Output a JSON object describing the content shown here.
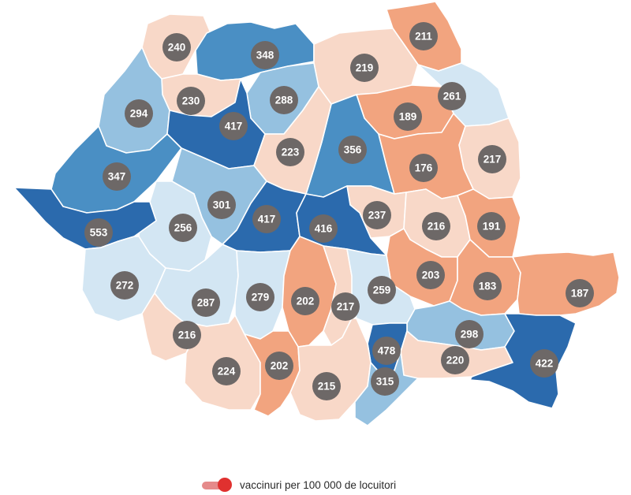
{
  "palette": {
    "dark_blue": "#2b6aad",
    "mid_blue": "#4a8fc4",
    "light_blue": "#95c1e0",
    "pale_blue": "#d3e6f3",
    "pale_peach": "#f8d8c8",
    "peach": "#f2a47f",
    "marker": "#6d6867",
    "border": "#ffffff"
  },
  "counties": [
    {
      "value": 240,
      "color": "pale_peach"
    },
    {
      "value": 348,
      "color": "mid_blue"
    },
    {
      "value": 211,
      "color": "peach"
    },
    {
      "value": 219,
      "color": "pale_peach"
    },
    {
      "value": 230,
      "color": "pale_peach"
    },
    {
      "value": 288,
      "color": "light_blue"
    },
    {
      "value": 261,
      "color": "pale_blue"
    },
    {
      "value": 294,
      "color": "light_blue"
    },
    {
      "value": 417,
      "color": "dark_blue"
    },
    {
      "value": 189,
      "color": "peach"
    },
    {
      "value": 356,
      "color": "mid_blue"
    },
    {
      "value": 223,
      "color": "pale_peach"
    },
    {
      "value": 217,
      "color": "pale_peach"
    },
    {
      "value": 176,
      "color": "peach"
    },
    {
      "value": 347,
      "color": "mid_blue"
    },
    {
      "value": 301,
      "color": "light_blue"
    },
    {
      "value": 417,
      "color": "dark_blue"
    },
    {
      "value": 237,
      "color": "pale_peach"
    },
    {
      "value": 416,
      "color": "dark_blue"
    },
    {
      "value": 256,
      "color": "pale_blue"
    },
    {
      "value": 216,
      "color": "pale_peach"
    },
    {
      "value": 191,
      "color": "peach"
    },
    {
      "value": 553,
      "color": "dark_blue"
    },
    {
      "value": 203,
      "color": "peach"
    },
    {
      "value": 272,
      "color": "pale_blue"
    },
    {
      "value": 183,
      "color": "peach"
    },
    {
      "value": 287,
      "color": "pale_blue"
    },
    {
      "value": 279,
      "color": "pale_blue"
    },
    {
      "value": 202,
      "color": "peach"
    },
    {
      "value": 217,
      "color": "pale_peach"
    },
    {
      "value": 259,
      "color": "pale_blue"
    },
    {
      "value": 187,
      "color": "peach"
    },
    {
      "value": 216,
      "color": "pale_peach"
    },
    {
      "value": 298,
      "color": "light_blue"
    },
    {
      "value": 478,
      "color": "dark_blue"
    },
    {
      "value": 224,
      "color": "pale_peach"
    },
    {
      "value": 202,
      "color": "peach"
    },
    {
      "value": 220,
      "color": "pale_peach"
    },
    {
      "value": 422,
      "color": "dark_blue"
    },
    {
      "value": 215,
      "color": "pale_peach"
    },
    {
      "value": 315,
      "color": "light_blue"
    }
  ],
  "legend": {
    "label": "vaccinuri per 100 000 de locuitori",
    "toggle_track_color": "#e58a8a",
    "toggle_knob_color": "#e0312f"
  }
}
